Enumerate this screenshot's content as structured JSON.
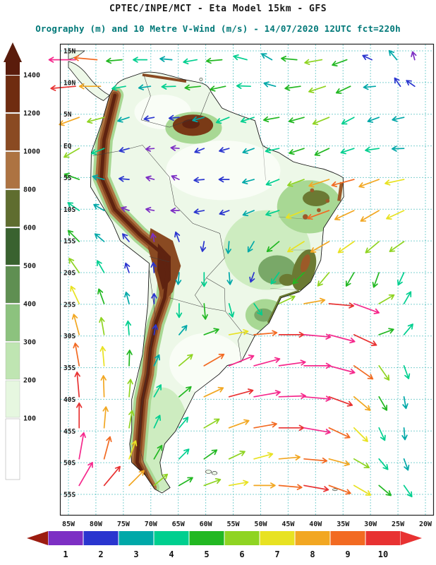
{
  "titles": {
    "line1": "CPTEC/INPE/MCT -  Eta Model 15km - GFS",
    "line2": "Orography (m) and 10 Metre V-Wind (m/s) - 14/07/2020 12UTC fct=220h"
  },
  "colors": {
    "title2": "#007878",
    "grid": "#00a2a2",
    "frame": "#222222",
    "coast": "#111111"
  },
  "terrain": {
    "base": "#edf8e8",
    "lowland_wash": "#f9fdf6",
    "green_200": "#cdecc0",
    "green_300": "#a8d894",
    "green_500": "#79a868",
    "olive_700": "#6b7a33",
    "brown_900": "#9c5a28",
    "brown_1100": "#7a3a16",
    "maroon_1300": "#5f2310",
    "andes_tan": "#ad7342",
    "andes_brown": "#8a4a22",
    "andes_core": "#5f2310"
  },
  "orography_scale": {
    "unit": "m",
    "labels": [
      "1400",
      "1200",
      "1000",
      "800",
      "600",
      "500",
      "400",
      "300",
      "200",
      "100"
    ],
    "arrow_color": "#5a1c0c",
    "segment_colors": [
      "#6f2c10",
      "#8a4a22",
      "#ad7342",
      "#5f6d2f",
      "#39622f",
      "#5f8f52",
      "#8cc27e",
      "#bfe5b2",
      "#e6f7e0",
      "#ffffff"
    ]
  },
  "wind_scale": {
    "unit": "m/s",
    "labels": [
      "1",
      "2",
      "3",
      "4",
      "5",
      "6",
      "7",
      "8",
      "9",
      "10"
    ],
    "colors": [
      "#7d2fc4",
      "#2a35cf",
      "#00a8a8",
      "#00cf8f",
      "#22b822",
      "#8fd422",
      "#e8e222",
      "#f2a722",
      "#f26a22",
      "#e83232"
    ],
    "left_arrow_color": "#9c1c10",
    "right_arrow_color": "#e83232",
    "overflow_color": "#f5288c"
  },
  "axes": {
    "lat_labels": [
      "15N",
      "10N",
      "5N",
      "EQ",
      "5S",
      "10S",
      "15S",
      "20S",
      "25S",
      "30S",
      "35S",
      "40S",
      "45S",
      "50S",
      "55S"
    ],
    "lon_labels": [
      "85W",
      "80W",
      "75W",
      "70W",
      "65W",
      "60W",
      "55W",
      "50W",
      "45W",
      "40W",
      "35W",
      "30W",
      "25W",
      "20W"
    ]
  },
  "arrows": [
    [
      2,
      2,
      180,
      11
    ],
    [
      8,
      2,
      185,
      9
    ],
    [
      15,
      2,
      175,
      5
    ],
    [
      22,
      2,
      180,
      4
    ],
    [
      29,
      2,
      185,
      3
    ],
    [
      36,
      2,
      170,
      4
    ],
    [
      43,
      2,
      175,
      5
    ],
    [
      50,
      2,
      195,
      4
    ],
    [
      57,
      2,
      210,
      3
    ],
    [
      64,
      2,
      185,
      5
    ],
    [
      71,
      2,
      170,
      6
    ],
    [
      78,
      2,
      160,
      5
    ],
    [
      85,
      2,
      205,
      2
    ],
    [
      92,
      2,
      230,
      3
    ],
    [
      97,
      2,
      255,
      1
    ],
    [
      2,
      8,
      175,
      10
    ],
    [
      9,
      8,
      180,
      8
    ],
    [
      16,
      8,
      170,
      4
    ],
    [
      23,
      8,
      172,
      3
    ],
    [
      30,
      8,
      178,
      4
    ],
    [
      37,
      8,
      174,
      5
    ],
    [
      44,
      8,
      168,
      5
    ],
    [
      51,
      8,
      182,
      4
    ],
    [
      58,
      8,
      195,
      3
    ],
    [
      65,
      8,
      172,
      5
    ],
    [
      72,
      8,
      162,
      6
    ],
    [
      79,
      8,
      155,
      5
    ],
    [
      86,
      8,
      175,
      3
    ],
    [
      93,
      8,
      235,
      2
    ],
    [
      97,
      8,
      215,
      2
    ],
    [
      3,
      15,
      160,
      8
    ],
    [
      10,
      15,
      165,
      6
    ],
    [
      17,
      15,
      162,
      3
    ],
    [
      24,
      15,
      170,
      2
    ],
    [
      31,
      15,
      175,
      2
    ],
    [
      38,
      15,
      165,
      3
    ],
    [
      45,
      15,
      158,
      4
    ],
    [
      52,
      15,
      162,
      4
    ],
    [
      59,
      15,
      170,
      5
    ],
    [
      66,
      15,
      165,
      5
    ],
    [
      73,
      15,
      158,
      6
    ],
    [
      80,
      15,
      152,
      4
    ],
    [
      87,
      15,
      160,
      3
    ],
    [
      94,
      15,
      168,
      3
    ],
    [
      3,
      22,
      150,
      6
    ],
    [
      10,
      22,
      158,
      4
    ],
    [
      17,
      22,
      165,
      2
    ],
    [
      24,
      22,
      175,
      1
    ],
    [
      31,
      22,
      185,
      1
    ],
    [
      38,
      22,
      158,
      2
    ],
    [
      45,
      22,
      165,
      2
    ],
    [
      52,
      22,
      160,
      3
    ],
    [
      59,
      22,
      168,
      4
    ],
    [
      66,
      22,
      162,
      5
    ],
    [
      73,
      22,
      155,
      5
    ],
    [
      80,
      22,
      162,
      4
    ],
    [
      87,
      22,
      172,
      4
    ],
    [
      94,
      22,
      178,
      3
    ],
    [
      3,
      29,
      200,
      5
    ],
    [
      10,
      29,
      195,
      3
    ],
    [
      17,
      29,
      185,
      2
    ],
    [
      24,
      29,
      195,
      1
    ],
    [
      31,
      29,
      205,
      1
    ],
    [
      38,
      29,
      175,
      2
    ],
    [
      45,
      29,
      180,
      2
    ],
    [
      52,
      29,
      165,
      3
    ],
    [
      59,
      29,
      158,
      4
    ],
    [
      66,
      29,
      160,
      6
    ],
    [
      73,
      29,
      162,
      8
    ],
    [
      80,
      29,
      165,
      9
    ],
    [
      87,
      29,
      160,
      8
    ],
    [
      94,
      29,
      168,
      7
    ],
    [
      3,
      36,
      215,
      4
    ],
    [
      10,
      36,
      210,
      3
    ],
    [
      17,
      36,
      200,
      1
    ],
    [
      24,
      36,
      190,
      1
    ],
    [
      31,
      36,
      180,
      1
    ],
    [
      38,
      36,
      170,
      2
    ],
    [
      45,
      36,
      160,
      2
    ],
    [
      52,
      36,
      158,
      3
    ],
    [
      59,
      36,
      162,
      4
    ],
    [
      66,
      36,
      158,
      7
    ],
    [
      73,
      36,
      160,
      9
    ],
    [
      80,
      36,
      155,
      8
    ],
    [
      87,
      36,
      150,
      8
    ],
    [
      94,
      36,
      155,
      7
    ],
    [
      3,
      43,
      225,
      5
    ],
    [
      10,
      43,
      220,
      3
    ],
    [
      17,
      43,
      230,
      2
    ],
    [
      24,
      43,
      260,
      1
    ],
    [
      31,
      43,
      250,
      2
    ],
    [
      38,
      43,
      100,
      2
    ],
    [
      45,
      43,
      95,
      3
    ],
    [
      52,
      43,
      120,
      3
    ],
    [
      59,
      43,
      140,
      5
    ],
    [
      66,
      43,
      148,
      7
    ],
    [
      73,
      43,
      150,
      8
    ],
    [
      80,
      43,
      145,
      7
    ],
    [
      87,
      43,
      140,
      6
    ],
    [
      94,
      43,
      145,
      6
    ],
    [
      3,
      50,
      235,
      6
    ],
    [
      10,
      50,
      240,
      4
    ],
    [
      17,
      50,
      250,
      2
    ],
    [
      24,
      50,
      265,
      2
    ],
    [
      31,
      50,
      95,
      3
    ],
    [
      38,
      50,
      90,
      4
    ],
    [
      45,
      50,
      85,
      3
    ],
    [
      52,
      50,
      110,
      2
    ],
    [
      59,
      50,
      125,
      4
    ],
    [
      66,
      50,
      135,
      5
    ],
    [
      73,
      50,
      130,
      6
    ],
    [
      80,
      50,
      120,
      5
    ],
    [
      87,
      50,
      110,
      5
    ],
    [
      94,
      50,
      115,
      4
    ],
    [
      3,
      57,
      245,
      7
    ],
    [
      10,
      57,
      250,
      5
    ],
    [
      17,
      57,
      255,
      3
    ],
    [
      24,
      57,
      270,
      2
    ],
    [
      31,
      57,
      90,
      4
    ],
    [
      38,
      57,
      85,
      5
    ],
    [
      45,
      57,
      75,
      4
    ],
    [
      52,
      57,
      55,
      4
    ],
    [
      59,
      57,
      335,
      6
    ],
    [
      66,
      57,
      350,
      8
    ],
    [
      73,
      57,
      5,
      10
    ],
    [
      80,
      57,
      20,
      11
    ],
    [
      87,
      57,
      330,
      6
    ],
    [
      94,
      57,
      300,
      4
    ],
    [
      3,
      64,
      255,
      8
    ],
    [
      10,
      64,
      260,
      6
    ],
    [
      17,
      64,
      265,
      4
    ],
    [
      24,
      64,
      280,
      2
    ],
    [
      31,
      64,
      310,
      3
    ],
    [
      38,
      64,
      340,
      5
    ],
    [
      45,
      64,
      350,
      7
    ],
    [
      52,
      64,
      355,
      9
    ],
    [
      59,
      64,
      0,
      10
    ],
    [
      66,
      64,
      5,
      11
    ],
    [
      73,
      64,
      15,
      11
    ],
    [
      80,
      64,
      25,
      10
    ],
    [
      87,
      64,
      340,
      5
    ],
    [
      94,
      64,
      310,
      4
    ],
    [
      3,
      71,
      260,
      9
    ],
    [
      10,
      71,
      265,
      7
    ],
    [
      17,
      71,
      272,
      5
    ],
    [
      24,
      71,
      295,
      3
    ],
    [
      31,
      71,
      320,
      6
    ],
    [
      38,
      71,
      330,
      9
    ],
    [
      45,
      71,
      338,
      11
    ],
    [
      52,
      71,
      345,
      11
    ],
    [
      59,
      71,
      352,
      11
    ],
    [
      66,
      71,
      0,
      11
    ],
    [
      73,
      71,
      15,
      11
    ],
    [
      80,
      71,
      35,
      9
    ],
    [
      87,
      71,
      55,
      6
    ],
    [
      94,
      71,
      70,
      4
    ],
    [
      3,
      78,
      265,
      10
    ],
    [
      10,
      78,
      268,
      8
    ],
    [
      17,
      78,
      275,
      6
    ],
    [
      24,
      78,
      300,
      4
    ],
    [
      31,
      78,
      320,
      5
    ],
    [
      38,
      78,
      335,
      8
    ],
    [
      45,
      78,
      345,
      10
    ],
    [
      52,
      78,
      350,
      11
    ],
    [
      59,
      78,
      358,
      11
    ],
    [
      66,
      78,
      5,
      11
    ],
    [
      73,
      78,
      20,
      10
    ],
    [
      80,
      78,
      40,
      8
    ],
    [
      87,
      78,
      60,
      5
    ],
    [
      94,
      78,
      80,
      3
    ],
    [
      3,
      85,
      270,
      10
    ],
    [
      10,
      85,
      275,
      8
    ],
    [
      17,
      85,
      280,
      6
    ],
    [
      24,
      85,
      295,
      4
    ],
    [
      31,
      85,
      310,
      4
    ],
    [
      38,
      85,
      330,
      6
    ],
    [
      45,
      85,
      340,
      8
    ],
    [
      52,
      85,
      350,
      9
    ],
    [
      59,
      85,
      0,
      10
    ],
    [
      66,
      85,
      10,
      11
    ],
    [
      73,
      85,
      25,
      9
    ],
    [
      80,
      85,
      45,
      7
    ],
    [
      87,
      85,
      65,
      4
    ],
    [
      94,
      85,
      85,
      3
    ],
    [
      3,
      92,
      280,
      11
    ],
    [
      10,
      92,
      285,
      9
    ],
    [
      17,
      92,
      290,
      7
    ],
    [
      24,
      92,
      300,
      5
    ],
    [
      31,
      92,
      315,
      4
    ],
    [
      38,
      92,
      325,
      5
    ],
    [
      45,
      92,
      335,
      6
    ],
    [
      52,
      92,
      345,
      7
    ],
    [
      59,
      92,
      355,
      8
    ],
    [
      66,
      92,
      5,
      9
    ],
    [
      73,
      92,
      15,
      8
    ],
    [
      80,
      92,
      30,
      6
    ],
    [
      87,
      92,
      50,
      4
    ],
    [
      94,
      92,
      70,
      3
    ],
    [
      3,
      98,
      300,
      11
    ],
    [
      10,
      98,
      310,
      10
    ],
    [
      17,
      98,
      315,
      8
    ],
    [
      24,
      98,
      320,
      6
    ],
    [
      31,
      98,
      330,
      5
    ],
    [
      38,
      98,
      340,
      6
    ],
    [
      45,
      98,
      350,
      7
    ],
    [
      52,
      98,
      0,
      8
    ],
    [
      59,
      98,
      5,
      9
    ],
    [
      66,
      98,
      10,
      10
    ],
    [
      73,
      98,
      20,
      9
    ],
    [
      80,
      98,
      30,
      7
    ],
    [
      87,
      98,
      40,
      5
    ],
    [
      94,
      98,
      55,
      4
    ]
  ],
  "chart_data": {
    "type": "map-vector-field",
    "title": "CPTEC/INPE/MCT -  Eta Model 15km - GFS",
    "subtitle": "Orography (m) and 10 Metre V-Wind (m/s) - 14/07/2020 12UTC fct=220h",
    "model": "Eta Model 15km",
    "boundary_conditions": "GFS",
    "valid_time": "14/07/2020 12UTC",
    "forecast": "fct=220h",
    "region": "South America",
    "map_extent": {
      "lon": [
        "85W",
        "20W"
      ],
      "lat": [
        "15N",
        "55S"
      ],
      "grid_spacing_deg": 5
    },
    "fields": [
      {
        "name": "Orography",
        "unit": "m",
        "render": "filled shading",
        "levels": [
          100,
          200,
          300,
          400,
          500,
          600,
          800,
          1000,
          1200,
          1400
        ]
      },
      {
        "name": "10 Metre V-Wind",
        "unit": "m/s",
        "render": "colored vectors",
        "speed_scale": [
          1,
          2,
          3,
          4,
          5,
          6,
          7,
          8,
          9,
          10
        ],
        "note": "vector field sampled in arrows[] as [x_pct, y_pct, direction_deg_cw_from_east, speed_class (11 = above scale / pink)]"
      }
    ],
    "legend_position": {
      "orography": "left vertical colorbar",
      "wind_speed": "bottom horizontal colorbar"
    },
    "grid": "dotted 5-degree lat/lon graticule"
  }
}
